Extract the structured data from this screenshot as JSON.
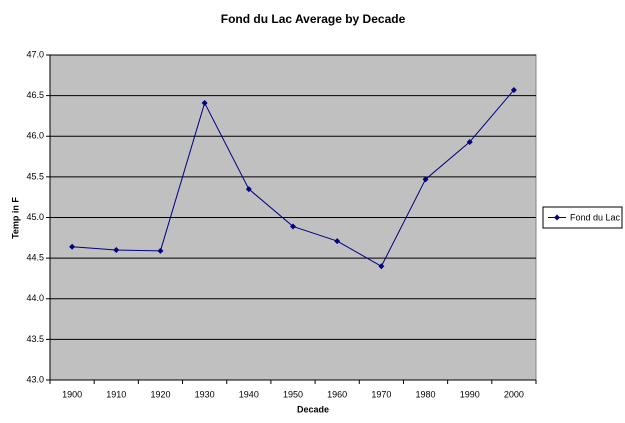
{
  "chart_data": {
    "type": "line",
    "title": "Fond du Lac Average by Decade",
    "x_label": "Decade",
    "y_label": "Temp in F",
    "categories": [
      "1900",
      "1910",
      "1920",
      "1930",
      "1940",
      "1950",
      "1960",
      "1970",
      "1980",
      "1990",
      "2000"
    ],
    "series": [
      {
        "name": "Fond du Lac",
        "color": "#000080",
        "values": [
          44.64,
          44.6,
          44.59,
          46.41,
          45.35,
          44.89,
          44.71,
          44.4,
          45.47,
          45.93,
          46.57
        ]
      }
    ],
    "ylim": [
      43,
      47
    ],
    "yticks": [
      {
        "value": 43,
        "label": "43.0"
      },
      {
        "value": 43.5,
        "label": "43.5"
      },
      {
        "value": 44,
        "label": "44.0"
      },
      {
        "value": 44.5,
        "label": "44.5"
      },
      {
        "value": 45,
        "label": "45.0"
      },
      {
        "value": 45.5,
        "label": "45.5"
      },
      {
        "value": 46,
        "label": "46.0"
      },
      {
        "value": 46.5,
        "label": "46.5"
      },
      {
        "value": 47,
        "label": "47.0"
      }
    ],
    "grid": true,
    "legend": "right",
    "plot_background": "#c0c0c0"
  }
}
